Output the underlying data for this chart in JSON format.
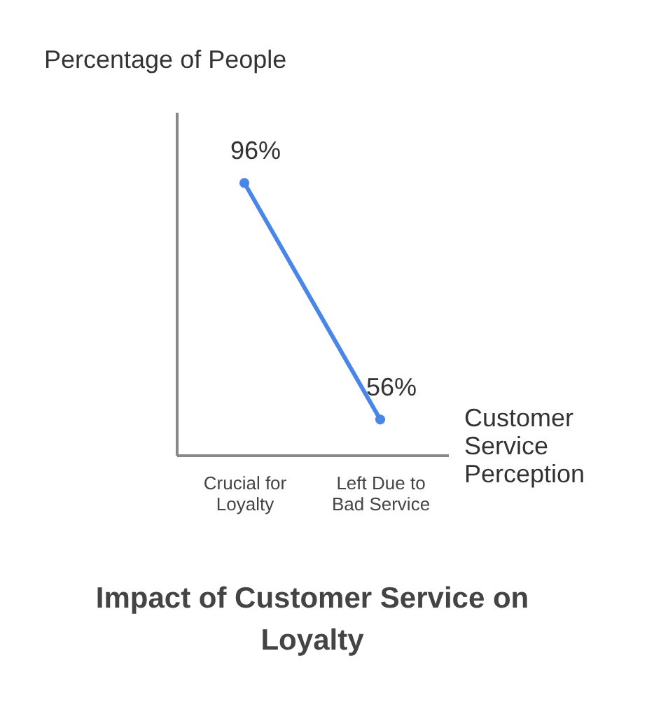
{
  "chart_data": {
    "type": "line",
    "title": "Impact of Customer Service on Loyalty",
    "xlabel": "Customer Service Perception",
    "ylabel": "Percentage of People",
    "categories": [
      "Crucial for Loyalty",
      "Left Due to Bad Service"
    ],
    "series": [
      {
        "color": "#4a86e8",
        "values": [
          96,
          56
        ],
        "value_labels": [
          "96%",
          "56%"
        ]
      }
    ],
    "ylim": [
      50,
      108
    ],
    "marker": "circle",
    "grid": false,
    "legend": false,
    "tick_labels": "x"
  }
}
